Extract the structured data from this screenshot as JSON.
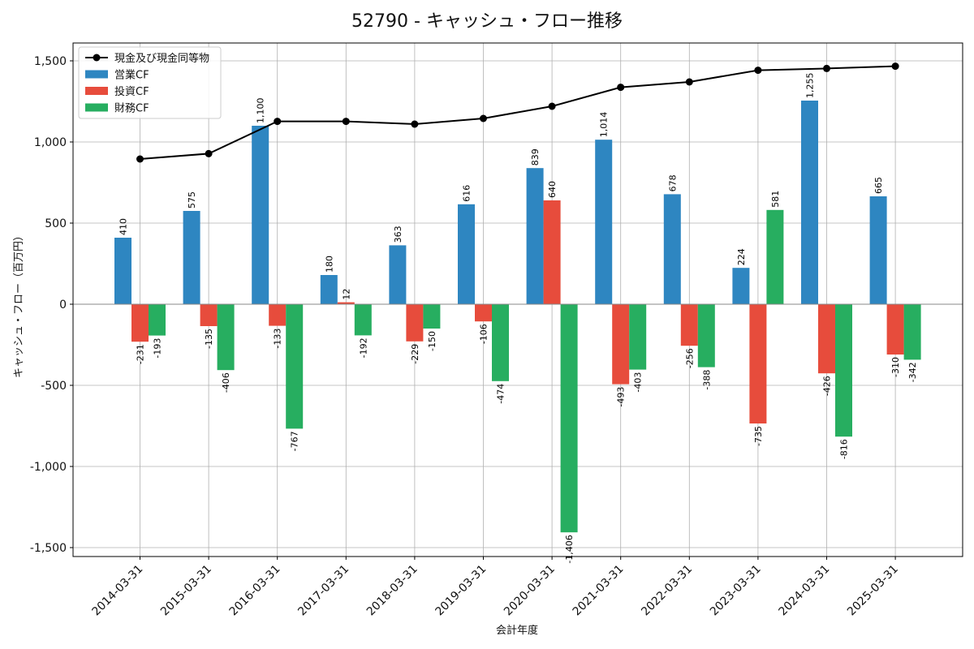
{
  "chart_data": {
    "type": "bar",
    "title": "52790 - キャッシュ・フロー推移",
    "xlabel": "会計年度",
    "ylabel": "キャッシュ・フロー（百万円）",
    "categories": [
      "2014-03-31",
      "2015-03-31",
      "2016-03-31",
      "2017-03-31",
      "2018-03-31",
      "2019-03-31",
      "2020-03-31",
      "2021-03-31",
      "2022-03-31",
      "2023-03-31",
      "2024-03-31",
      "2025-03-31"
    ],
    "ylim": [
      -1560,
      1600
    ],
    "yticks": [
      -1500,
      -1000,
      -500,
      0,
      500,
      1000,
      1500
    ],
    "ytick_labels": [
      "-1,500",
      "-1,000",
      "-500",
      "0",
      "500",
      "1,000",
      "1,500"
    ],
    "grid": true,
    "legend_position": "top-left",
    "series": [
      {
        "name": "営業CF",
        "kind": "bar",
        "color": "#2e86c1",
        "values": [
          410,
          575,
          1100,
          180,
          363,
          616,
          839,
          1014,
          678,
          224,
          1255,
          665
        ],
        "labels": [
          "410",
          "575",
          "1,100",
          "180",
          "363",
          "616",
          "839",
          "1,014",
          "678",
          "224",
          "1,255",
          "665"
        ]
      },
      {
        "name": "投資CF",
        "kind": "bar",
        "color": "#e74c3c",
        "values": [
          -231,
          -135,
          -133,
          12,
          -229,
          -106,
          640,
          -493,
          -256,
          -735,
          -426,
          -310
        ],
        "labels": [
          "-231",
          "-135",
          "-133",
          "12",
          "-229",
          "-106",
          "640",
          "-493",
          "-256",
          "-735",
          "-426",
          "-310"
        ]
      },
      {
        "name": "財務CF",
        "kind": "bar",
        "color": "#27ae60",
        "values": [
          -193,
          -406,
          -767,
          -192,
          -150,
          -474,
          -1406,
          -403,
          -388,
          581,
          -816,
          -342
        ],
        "labels": [
          "-193",
          "-406",
          "-767",
          "-192",
          "-150",
          "-474",
          "-1,406",
          "-403",
          "-388",
          "581",
          "-816",
          "-342"
        ]
      },
      {
        "name": "現金及び現金同等物",
        "kind": "line",
        "color": "#000000",
        "values": [
          895,
          928,
          1127,
          1127,
          1110,
          1145,
          1220,
          1337,
          1370,
          1442,
          1453,
          1467
        ]
      }
    ]
  }
}
